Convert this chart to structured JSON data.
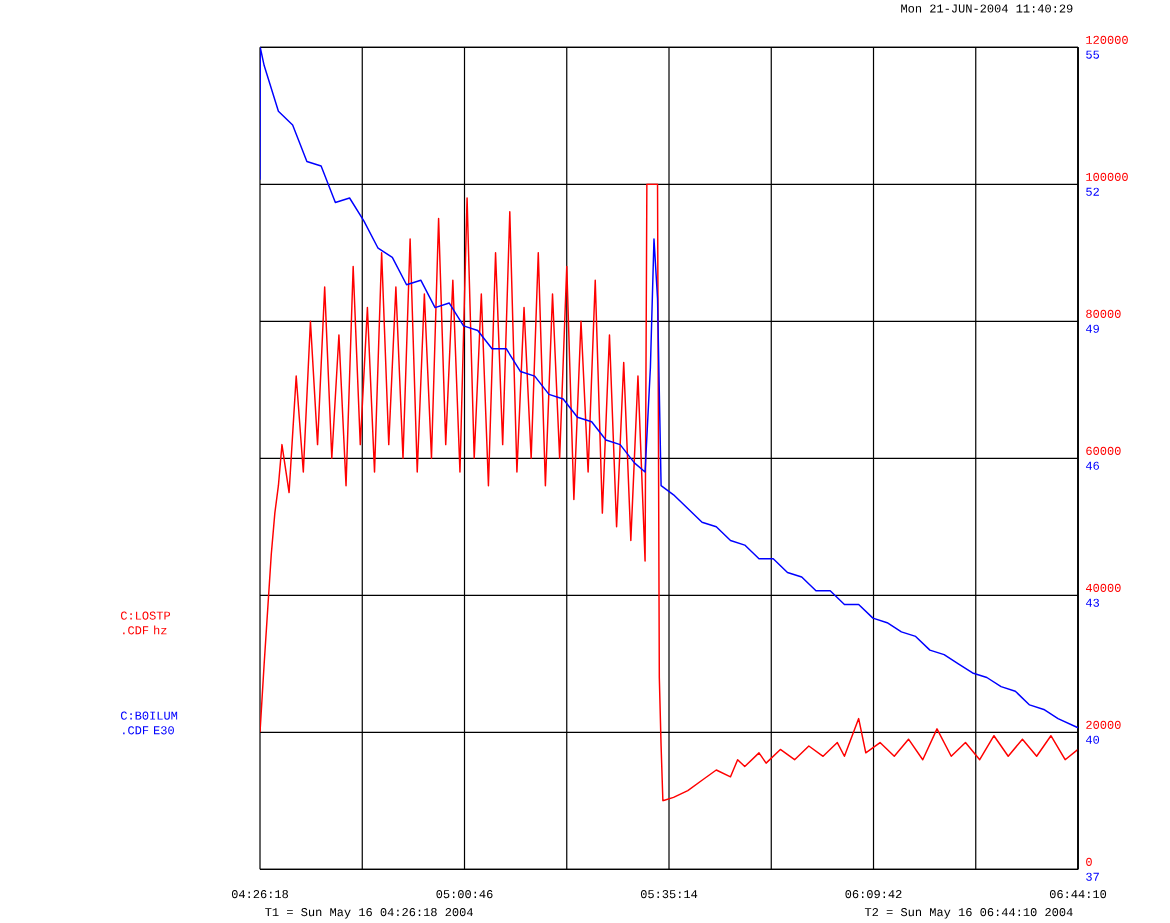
{
  "chart_data": {
    "type": "line",
    "title": "Mon 21-JUN-2004 11:40:29",
    "annotations": [
      "T1 = Sun May 16 04:26:18 2004",
      "T2 = Sun May 16 06:44:10 2004"
    ],
    "xlim": [
      4.43833,
      6.73611
    ],
    "xticks": [
      {
        "value": 4.43833,
        "label": "04:26:18"
      },
      {
        "value": 4.72556,
        "label": null
      },
      {
        "value": 5.01278,
        "label": "05:00:46"
      },
      {
        "value": 5.3,
        "label": null
      },
      {
        "value": 5.58722,
        "label": "05:35:14"
      },
      {
        "value": 5.87444,
        "label": null
      },
      {
        "value": 6.16167,
        "label": "06:09:42"
      },
      {
        "value": 6.44889,
        "label": null
      },
      {
        "value": 6.73611,
        "label": "06:44:10"
      }
    ],
    "ylim": [
      0,
      120000
    ],
    "yticks": [
      0,
      20000,
      40000,
      60000,
      80000,
      100000,
      120000
    ],
    "y2lim": [
      37,
      55
    ],
    "y2ticks": [
      37,
      40,
      43,
      46,
      49,
      52,
      55
    ],
    "grid": true,
    "legend": "left",
    "marker": "none",
    "line_style": "solid",
    "series": [
      {
        "name": "C:LOSTP .CDF hz",
        "color": "#ff0000",
        "x": [
          4.43833,
          4.45,
          4.46,
          4.47,
          4.48,
          4.49,
          4.5,
          4.52,
          4.54,
          4.56,
          4.58,
          4.6,
          4.62,
          4.64,
          4.66,
          4.68,
          4.7,
          4.72,
          4.74,
          4.76,
          4.78,
          4.8,
          4.82,
          4.84,
          4.86,
          4.88,
          4.9,
          4.92,
          4.94,
          4.96,
          4.98,
          5.0,
          5.02,
          5.04,
          5.06,
          5.08,
          5.1,
          5.12,
          5.14,
          5.16,
          5.18,
          5.2,
          5.22,
          5.24,
          5.26,
          5.28,
          5.3,
          5.32,
          5.34,
          5.36,
          5.38,
          5.4,
          5.42,
          5.44,
          5.46,
          5.48,
          5.5,
          5.52,
          5.525,
          5.555,
          5.56,
          5.565,
          5.57,
          5.6,
          5.64,
          5.68,
          5.72,
          5.76,
          5.78,
          5.8,
          5.84,
          5.86,
          5.9,
          5.94,
          5.98,
          6.02,
          6.06,
          6.08,
          6.12,
          6.14,
          6.18,
          6.22,
          6.26,
          6.3,
          6.34,
          6.38,
          6.42,
          6.46,
          6.5,
          6.54,
          6.58,
          6.62,
          6.66,
          6.7,
          6.7361
        ],
        "values": [
          20000,
          30000,
          38000,
          46000,
          52000,
          56000,
          62000,
          55000,
          72000,
          58000,
          80000,
          62000,
          85000,
          60000,
          78000,
          56000,
          88000,
          62000,
          82000,
          58000,
          90000,
          62000,
          85000,
          60000,
          92000,
          58000,
          84000,
          60000,
          95000,
          62000,
          86000,
          58000,
          98000,
          60000,
          84000,
          56000,
          90000,
          62000,
          96000,
          58000,
          82000,
          60000,
          90000,
          56000,
          84000,
          60000,
          88000,
          54000,
          80000,
          58000,
          86000,
          52000,
          78000,
          50000,
          74000,
          48000,
          72000,
          45000,
          100000,
          100000,
          28000,
          18000,
          10000,
          10500,
          11500,
          13000,
          14500,
          13500,
          16000,
          15000,
          17000,
          15500,
          17500,
          16000,
          18000,
          16500,
          18500,
          16500,
          22000,
          17000,
          18500,
          16500,
          19000,
          16000,
          20500,
          16500,
          18500,
          16000,
          19500,
          16500,
          19000,
          16500,
          19500,
          16000,
          17500
        ]
      },
      {
        "name": "C:B0ILUM .CDF E30",
        "color": "#0000ff",
        "axis": "y2",
        "x": [
          4.43833,
          4.439,
          4.45,
          4.49,
          4.53,
          4.57,
          4.61,
          4.65,
          4.69,
          4.73,
          4.77,
          4.81,
          4.85,
          4.89,
          4.93,
          4.97,
          5.01,
          5.05,
          5.09,
          5.13,
          5.17,
          5.21,
          5.25,
          5.29,
          5.33,
          5.37,
          5.41,
          5.45,
          5.49,
          5.52,
          5.535,
          5.545,
          5.555,
          5.565,
          5.6,
          5.64,
          5.68,
          5.72,
          5.76,
          5.8,
          5.84,
          5.88,
          5.92,
          5.96,
          6.0,
          6.04,
          6.08,
          6.12,
          6.16,
          6.2,
          6.24,
          6.28,
          6.32,
          6.36,
          6.4,
          6.44,
          6.48,
          6.52,
          6.56,
          6.6,
          6.64,
          6.68,
          6.7361
        ],
        "values": [
          52.1,
          55.0,
          54.6,
          53.6,
          53.3,
          52.5,
          52.4,
          51.6,
          51.7,
          51.2,
          50.6,
          50.4,
          49.8,
          49.9,
          49.3,
          49.4,
          48.9,
          48.8,
          48.4,
          48.4,
          47.9,
          47.8,
          47.4,
          47.3,
          46.9,
          46.8,
          46.4,
          46.3,
          45.9,
          45.7,
          48.0,
          50.8,
          49.5,
          45.4,
          45.2,
          44.9,
          44.6,
          44.5,
          44.2,
          44.1,
          43.8,
          43.8,
          43.5,
          43.4,
          43.1,
          43.1,
          42.8,
          42.8,
          42.5,
          42.4,
          42.2,
          42.1,
          41.8,
          41.7,
          41.5,
          41.3,
          41.2,
          41.0,
          40.9,
          40.6,
          40.5,
          40.3,
          40.1
        ]
      }
    ]
  }
}
